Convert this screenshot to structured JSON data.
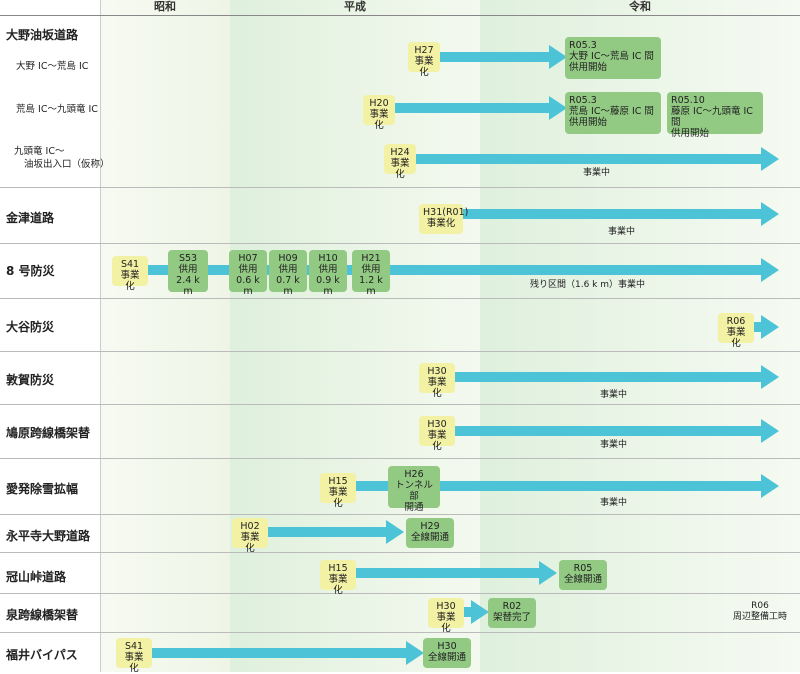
{
  "eras": [
    "昭和",
    "平成",
    "令和"
  ],
  "rows": {
    "r0": {
      "label": "大野油坂道路"
    },
    "r0a": {
      "label": "大野 IC～荒島 IC",
      "start": "H27\n事業化",
      "done": "R05.3\n大野 IC～荒島 IC 間\n供用開始"
    },
    "r0b": {
      "label": "荒島 IC～九頭竜 IC",
      "start": "H20\n事業化",
      "done1": "R05.3\n荒島 IC～藤原 IC 間\n供用開始",
      "done2": "R05.10\n藤原 IC～九頭竜 IC 間\n供用開始"
    },
    "r0c": {
      "label1": "九頭竜 IC～",
      "label2": "油坂出入口（仮称）",
      "start": "H24\n事業化",
      "status": "事業中"
    },
    "r1": {
      "label": "金津道路",
      "start": "H31(R01)\n事業化",
      "status": "事業中"
    },
    "r2": {
      "label": "8 号防災",
      "start": "S41\n事業化",
      "m1": "S53\n供用\n2.4 k m",
      "m2": "H07\n供用\n0.6 k m",
      "m3": "H09\n供用\n0.7 k m",
      "m4": "H10\n供用\n0.9 k m",
      "m5": "H21\n供用\n1.2 k m",
      "status": "残り区間（1.6 k m）事業中"
    },
    "r3": {
      "label": "大谷防災",
      "start": "R06\n事業化"
    },
    "r4": {
      "label": "敦賀防災",
      "start": "H30\n事業化",
      "status": "事業中"
    },
    "r5": {
      "label": "鳩原跨線橋架替",
      "start": "H30\n事業化",
      "status": "事業中"
    },
    "r6": {
      "label": "愛発除雪拡幅",
      "start": "H15\n事業化",
      "mid": "H26\nトンネル部\n開通",
      "status": "事業中"
    },
    "r7": {
      "label": "永平寺大野道路",
      "start": "H02\n事業化",
      "done": "H29\n全線開通"
    },
    "r8": {
      "label": "冠山峠道路",
      "start": "H15\n事業化",
      "done": "R05\n全線開通"
    },
    "r9": {
      "label": "泉跨線橋架替",
      "start": "H30\n事業化",
      "done": "R02\n架替完了",
      "note": "R06\n周辺整備工時"
    },
    "r10": {
      "label": "福井バイパス",
      "start": "S41\n事業化",
      "done": "H30\n全線開通"
    }
  }
}
